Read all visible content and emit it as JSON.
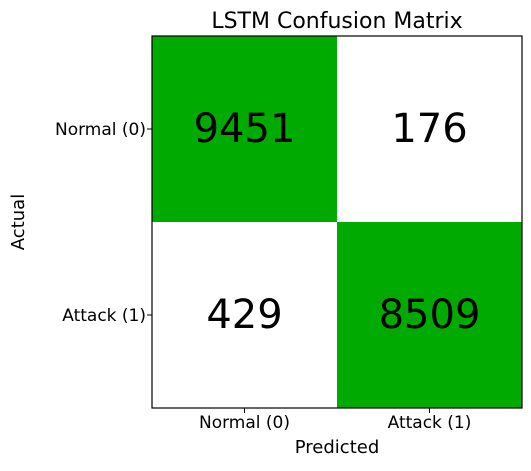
{
  "chart_data": {
    "type": "heatmap",
    "title": "LSTM Confusion Matrix",
    "xlabel": "Predicted",
    "ylabel": "Actual",
    "x_categories": [
      "Normal (0)",
      "Attack (1)"
    ],
    "y_categories": [
      "Normal (0)",
      "Attack (1)"
    ],
    "values": [
      [
        9451,
        176
      ],
      [
        429,
        8509
      ]
    ],
    "colors": {
      "high": "#00aa00",
      "low": "#ffffff",
      "text": "#000000",
      "frame": "#000000"
    },
    "grid": false
  }
}
